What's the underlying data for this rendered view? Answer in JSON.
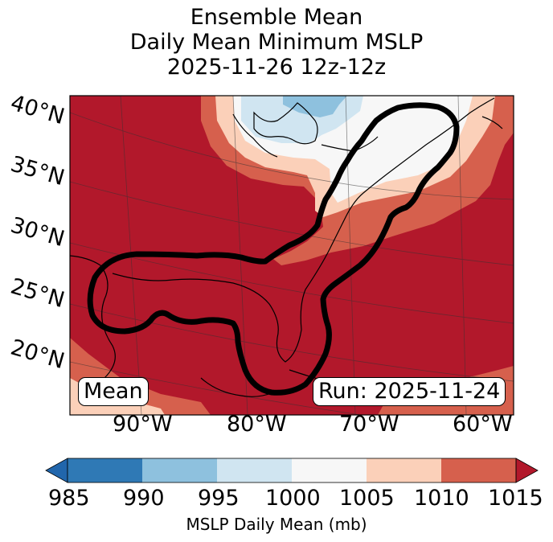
{
  "title": {
    "line1": "Ensemble Mean",
    "line2": "Daily Mean Minimum MSLP",
    "line3": "2025-11-26 12z-12z"
  },
  "lat_labels": [
    "40°N",
    "35°N",
    "30°N",
    "25°N",
    "20°N"
  ],
  "lon_labels": [
    "90°W",
    "80°W",
    "70°W",
    "60°W"
  ],
  "mean_box": "Mean",
  "run_box": "Run: 2025-11-24",
  "colorbar": {
    "label": "MSLP Daily Mean (mb)",
    "ticks": [
      "985",
      "990",
      "995",
      "1000",
      "1005",
      "1010",
      "1015"
    ],
    "colors": [
      "#2f79b5",
      "#8ec1de",
      "#d0e5f1",
      "#f7f7f7",
      "#fbd0b9",
      "#d6604d",
      "#b2182b"
    ],
    "extend": "both"
  },
  "colors": {
    "ocean_high": "#b2182b",
    "mid_high": "#d6604d",
    "low_peach": "#fbd0b9",
    "neutral": "#f7f7f7",
    "light_blue": "#d0e5f1",
    "mid_blue": "#8ec1de",
    "contour": "#000000"
  }
}
